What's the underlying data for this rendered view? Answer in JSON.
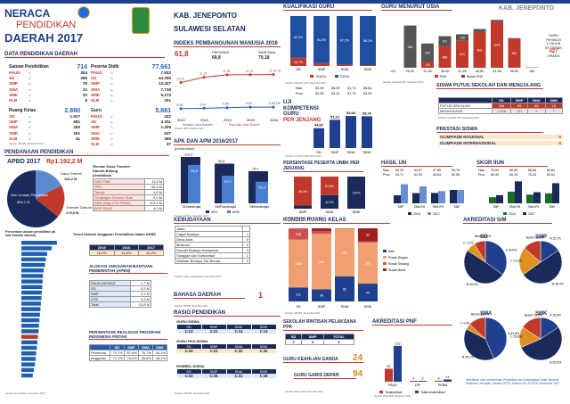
{
  "header": {
    "title1": "NERACA",
    "title2": "PENDIDIKAN",
    "title3": "DAERAH 2017",
    "region": "KAB. JENEPONTO",
    "province": "SULAWESI SELATAN"
  },
  "data_pendidikan": {
    "title": "DATA PENDIDIKAN DAERAH",
    "satuan": {
      "label": "Satuan Pendidikan",
      "total": "714",
      "items": [
        [
          "PAUD",
          "304"
        ],
        [
          "SD",
          "286"
        ],
        [
          "SMP",
          "75"
        ],
        [
          "SMA",
          "23"
        ],
        [
          "SMK",
          "20"
        ],
        [
          "SLB",
          "6"
        ]
      ]
    },
    "peserta": {
      "label": "Peserta Didik",
      "total": "77.661",
      "items": [
        [
          "PAUD",
          "7.832"
        ],
        [
          "SD",
          "43.250"
        ],
        [
          "SMP",
          "13.427"
        ],
        [
          "SMA",
          "7.718"
        ],
        [
          "SMK",
          "5.273"
        ],
        [
          "SLB",
          "161"
        ]
      ]
    },
    "ruang": {
      "label": "Ruang Kelas",
      "total": "2.880",
      "items": [
        [
          "SD",
          "1.627"
        ],
        [
          "SMP",
          "581"
        ],
        [
          "SMA",
          "250"
        ],
        [
          "SMK",
          "181"
        ],
        [
          "SLB",
          "41"
        ]
      ]
    },
    "guru": {
      "label": "Guru",
      "total": "5.881",
      "items": [
        [
          "PAUD",
          "422"
        ],
        [
          "SD",
          "3.311"
        ],
        [
          "SMP",
          "1.205"
        ],
        [
          "SMA",
          "537"
        ],
        [
          "SMK",
          "369"
        ],
        [
          "SLB",
          "37"
        ]
      ]
    },
    "source": "Sumber: PDSPK, November 2017"
  },
  "ipm": {
    "title": "INDEKS PEMBANGUNAN MANUSIA 2016",
    "kab_value": "61,8",
    "prov_label": "PROVINSI",
    "prov_value": "69,8",
    "nas_label": "NASIONAL",
    "nas_value": "70,18",
    "source": "Sumber: BPS, Oktober 2017",
    "legend1": "Harapan Lama Sekolah",
    "legend2": "Rata-rata Lama Sekolah"
  },
  "kualifikasi": {
    "title": "KUALIFIKASI GURU",
    "legend": [
      "<S1/D4",
      "S1/D4"
    ],
    "source": "Sumber: Dapodik GTK, November 2017"
  },
  "guru_usia": {
    "title": "GURU MENURUT USIA",
    "region": "KAB. JENEPONTO",
    "note": [
      "GURU",
      "PENSIUN",
      "1 TAHUN",
      "KE DEPAN"
    ],
    "pensiun": "427",
    "pensiun_unit": "ORANG",
    "legend": [
      "PNS",
      "Bukan PNS"
    ],
    "source": "Sumber: Dapodik GTK, November 2017"
  },
  "uji_kompetensi": {
    "title": [
      "UJI",
      "KOMPETENSI",
      "GURU",
      "PER JENJANG"
    ],
    "source": "Sumber: Dit. GTK, November 2017"
  },
  "apk": {
    "title": "APK DAN APM 2016/2017",
    "subtitle": "(persentase)",
    "legend": [
      "APK",
      "APM"
    ],
    "source": "Sumber: Dit PK, November 2017"
  },
  "unbk": {
    "title": "PERSENTASE PESERTA UNBK PER JENJANG",
    "source": "Sumber: Puspendik, November 2017"
  },
  "hasil_un": {
    "title": "HASIL UN",
    "legend": [
      "2016",
      "2017"
    ],
    "source": "Sumber: Puspendik, November 2017"
  },
  "skor_iun": {
    "title": "SKOR IIUN",
    "legend": [
      "2016",
      "2017"
    ],
    "source": "Sumber: Puspendik, November 2017"
  },
  "putus_sekolah": {
    "title": "SISWA PUTUS SEKOLAH DAN MENGULANG",
    "headers": [
      "",
      "SD",
      "SMP",
      "SMA",
      "SMK"
    ],
    "rows": [
      [
        "PUTUS SEKOLAH",
        "346",
        "59",
        "68",
        "18"
      ],
      [
        "MENGULANG",
        "1.058",
        "101",
        "9",
        "7"
      ]
    ],
    "source": "Sumber: Dapodik GTK, November 2017"
  },
  "prestasi": {
    "title": "PRESTASI SISWA",
    "rows": [
      [
        "OLIMPIADE NASIONAL",
        "0"
      ],
      [
        "OLIMPIADE INTERNASIONAL",
        "0"
      ]
    ]
  },
  "pendanaan": {
    "title": "PENDANAAN PENDIDIKAN",
    "apbd_label": "APBD 2017",
    "apbd_value": "Rp1.192,2 M",
    "dana_daerah_label": "Dana Daerah",
    "dana_daerah_value": "126,2 M",
    "non_urusan_label": "Non Urusan Pendidikan",
    "non_urusan_value": "890,1 M",
    "transfer_label": "Transfer Daerah",
    "transfer_value": "175,8 M",
    "rincian_title": "Rincian Dana Transfer Daerah Bidang pendidikan",
    "rincian": [
      [
        "DAK Fisik",
        "11,5 M"
      ],
      [
        "TPG",
        "45,5 M"
      ],
      [
        "Tamsil",
        "1,6 M"
      ],
      [
        "Tunjangan Khusus Guru",
        "0,0 M"
      ],
      [
        "DAU (Gaji GTK PNSD)",
        "113,5 M"
      ],
      [
        "BOP PAUD",
        "4,2 M"
      ]
    ],
    "ranking_title": "Persentase urusan pendidikan (di luar transfer daerah)",
    "trend_title": "Trend Alokasi Anggaran Pendidikan dalam APBD",
    "trend_years": [
      "2015",
      "2016",
      "2017"
    ],
    "trend_values": [
      "16,0%",
      "14,3%",
      "12,4%"
    ],
    "bantuan_title": "ALOKASI ANGGARAN BANTUAN PEMERINTAH (APBN)",
    "bantuan": [
      [
        "PAUD-DIKMAS",
        "1,7 M"
      ],
      [
        "SD",
        "5,5 M"
      ],
      [
        "SMP",
        "3,1 M"
      ],
      [
        "GTK",
        "3,6 M"
      ],
      [
        "Total",
        "13,8 M"
      ]
    ],
    "pip_title": "PERSENTASE REALISASI PROGRAM INDONESIA PINTAR",
    "pip_headers": [
      "",
      "SD",
      "SMP",
      "SMA",
      "SMK"
    ],
    "pip_rows": [
      [
        "Penerima",
        "73,7%",
        "67,6%",
        "76,7%",
        "40,1%"
      ],
      [
        "Anggaran",
        "72,1%",
        "76,0%",
        "83,6%",
        "48,1%"
      ]
    ],
    "source": "Sumber: Kemendagri, November 2017"
  },
  "kebudayaan": {
    "title": "KEBUDAYAAN",
    "rows": [
      [
        "Jalan",
        ""
      ],
      [
        "Cagar Budaya",
        "1"
      ],
      [
        "Desa Adat",
        "0"
      ],
      [
        "Museum",
        "0"
      ],
      [
        "Rumah Budaya Nusantara",
        "0"
      ],
      [
        "Sanggar dan Komunitas",
        "1"
      ],
      [
        "Warisan Budaya Tak Benda",
        "0"
      ]
    ],
    "source": "Sumber: Ditjen Kebudayaan, November 2017"
  },
  "bahasa": {
    "title": "BAHASA DAERAH",
    "value": "1",
    "source": "Sumber: BPPB, November 2017"
  },
  "rasio": {
    "title": "RASIO PENDIDIKAN",
    "guru_siswa_title": "GURU:SISWA",
    "headers": [
      "SD",
      "SMP",
      "SMA",
      "SMK"
    ],
    "guru_siswa": [
      "1:13",
      "1:11",
      "1:14",
      "1:14"
    ],
    "guru_pns_title": "GURU PNS:SISWA",
    "guru_pns": [
      "1:24",
      "1:22",
      "1:32",
      "1:32"
    ],
    "rombel_title": "ROMBEL:SISWA",
    "rombel": [
      "1:23",
      "1:25",
      "1:31",
      "1:28"
    ],
    "source": "Sumber: PDSPK, November 2017"
  },
  "kondisi": {
    "title": "KONDISI RUANG KELAS",
    "legend": [
      "Baik",
      "Rusak Ringan",
      "Rusak Sedang",
      "Rusak Berat"
    ],
    "source": "Sumber: PDSPK, November 2017"
  },
  "rintisan": {
    "title": "SEKOLAH RINTISAN PELAKSANA PPK",
    "headers": [
      "SD",
      "SMP",
      "TOTAL"
    ],
    "values": [
      "2",
      "3",
      "5"
    ],
    "source": "Sumber: Ditjen GTK, November 2017"
  },
  "keahlian": {
    "title": "GURU KEAHLIAN GANDA",
    "value": "24"
  },
  "garis_depan": {
    "title": "GURU GARIS DEPAN",
    "value": "94",
    "source": "Sumber: Ditjen GTK, November 2017"
  },
  "akreditasi_pnf": {
    "title": "AKREDITASI PNF",
    "legend": [
      "Terakreditasi",
      "Tidak terakreditasi"
    ],
    "source": "Sumber: BAN-PNF, November 2017"
  },
  "akreditasi_sm": {
    "title": "AKREDITASI S/M",
    "source": "Sumber: BAN S/M, November 2017"
  },
  "footer": {
    "note": "Diterbitkan oleh Kementerian Pendidikan dan Kebudayaan Jalan Jenderal Sudirman, Senayan, Jakarta 10270, Telepon 021 5711144 Desember 2017"
  },
  "chart_data": [
    {
      "type": "line",
      "title": "INDEKS PEMBANGUNAN MANUSIA 2016",
      "x": [
        "2012",
        "2013",
        "2014",
        "2015",
        "2016"
      ],
      "series": [
        {
          "name": "Harapan Lama Sekolah",
          "values": [
            10.24,
            11.22,
            11.68,
            11.7,
            11.72
          ]
        },
        {
          "name": "Rata-rata Lama Sekolah",
          "values": [
            5.36,
            5.43,
            5.55,
            5.64,
            5.65
          ]
        }
      ],
      "labels": [
        [
          "10,24",
          "11,22",
          "11,68",
          "11,70",
          "11,72 Tahun"
        ],
        [
          "5,36",
          "5,43",
          "5,55",
          "5,64",
          "5,65 Tahun"
        ]
      ]
    },
    {
      "type": "bar",
      "title": "KUALIFIKASI GURU",
      "categories": [
        "SD",
        "SMP",
        "SMA",
        "SMK"
      ],
      "series": [
        {
          "name": "<S1/D4",
          "values": [
            16.7,
            5.8,
            2.8,
            1.8
          ]
        },
        {
          "name": "S1/D4",
          "values": [
            83.3,
            94.2,
            97.2,
            98.2
          ]
        }
      ]
    },
    {
      "type": "bar",
      "title": "GURU MENURUT USIA",
      "categories": [
        "<24",
        "25-30",
        "31-35",
        "36-40",
        "41-45",
        "46-50",
        "51-55",
        "56-60",
        ">60"
      ],
      "series": [
        {
          "name": "PNS",
          "values": [
            0,
            2,
            139,
            488,
            613,
            803,
            1042,
            654,
            10
          ]
        },
        {
          "name": "Bukan PNS",
          "values": [
            0,
            946,
            406,
            221,
            138,
            66,
            32,
            12,
            0
          ]
        }
      ]
    },
    {
      "type": "bar",
      "title": "UJI KOMPETENSI GURU",
      "categories": [
        "SD",
        "SMP",
        "SMA",
        "SMK"
      ],
      "values": [
        44.87,
        51.13,
        53.94,
        53.76
      ],
      "extra_rows": {
        "Nas.": [
          "54,33",
          "58,25",
          "61,74",
          "58,81"
        ],
        "Prov.": [
          "50,05",
          "54,41",
          "57,75",
          "54,93"
        ]
      }
    },
    {
      "type": "bar",
      "title": "APK DAN APM 2016/2017",
      "categories": [
        "SD/sederajat",
        "SMP/sederajat",
        "SM/sederajat"
      ],
      "series": [
        {
          "name": "APK",
          "values": [
            113.2,
            96.8,
            78.4
          ]
        },
        {
          "name": "APM",
          "values": [
            93.6,
            67.2,
            52.8
          ]
        }
      ]
    },
    {
      "type": "bar",
      "title": "PERSENTASE PESERTA UNBK PER JENJANG",
      "categories": [
        "SMP",
        "SMA",
        "SMK"
      ],
      "series": [
        {
          "name": "UNBK",
          "values": [
            9.6,
            42.2,
            100
          ]
        },
        {
          "name": "UNKP",
          "values": [
            90.4,
            57.8,
            0
          ]
        }
      ]
    },
    {
      "type": "bar",
      "title": "HASIL UN",
      "categories": [
        "SMP",
        "SMA IPA",
        "SMA IPS",
        "SMK"
      ],
      "series": [
        {
          "name": "2016",
          "values": [
            40.44,
            43.25,
            43.48,
            47.34
          ]
        },
        {
          "name": "2017",
          "values": [
            54.71,
            51.9,
            45.84,
            47.34
          ]
        }
      ],
      "extra_rows": {
        "Nas.": [
          "54,25",
          "52,07",
          "47,85",
          "53,75"
        ],
        "Prov.": [
          "54,71",
          "51,90",
          "45,84",
          "52,06"
        ]
      }
    },
    {
      "type": "bar",
      "title": "SKOR IIUN",
      "categories": [
        "SMP",
        "SMA IPA",
        "SMA IPS",
        "SMK"
      ],
      "series": [
        {
          "name": "2016",
          "values": [
            50.5,
            60.2,
            55.1,
            57.3
          ]
        },
        {
          "name": "2017",
          "values": [
            54.1,
            77.9,
            59.2,
            74.8
          ]
        }
      ],
      "extra_rows": {
        "Nas.": [
          "70,93",
          "66,89",
          "66,65",
          "62,61"
        ],
        "Prov.": [
          "60,45",
          "60,15",
          "70,24",
          "60,61"
        ]
      }
    },
    {
      "type": "bar",
      "title": "KONDISI RUANG KELAS",
      "categories": [
        "SD",
        "SMP",
        "SMA",
        "SMK"
      ],
      "series": [
        {
          "name": "Baik",
          "values": [
            311,
            96,
            86,
            44
          ]
        },
        {
          "name": "Rusak Ringan",
          "values": [
            1064,
            442,
            162,
            102
          ]
        },
        {
          "name": "Rusak Sedang",
          "values": [
            248,
            22,
            1,
            3
          ]
        },
        {
          "name": "Rusak Berat",
          "values": [
            4,
            21,
            1,
            32
          ]
        }
      ]
    },
    {
      "type": "bar",
      "title": "AKREDITASI PNF",
      "categories": [
        "PAUD",
        "LKP",
        "PKBM"
      ],
      "series": [
        {
          "name": "Terakreditasi",
          "values": [
            81,
            4,
            6
          ]
        },
        {
          "name": "Tidak terakreditasi",
          "values": [
            223,
            5,
            14
          ]
        }
      ]
    },
    {
      "type": "pie",
      "title": "SD",
      "categories": [
        "A",
        "B",
        "C",
        "Belum"
      ],
      "values": [
        34.9,
        49.3,
        7.2,
        8.6
      ]
    },
    {
      "type": "pie",
      "title": "SMP",
      "categories": [
        "A",
        "B",
        "C",
        "Belum"
      ],
      "values": [
        15.7,
        49.4,
        21.3,
        13.6
      ]
    },
    {
      "type": "pie",
      "title": "SMA",
      "categories": [
        "A",
        "B",
        "C",
        "Belum"
      ],
      "values": [
        43.5,
        39.1,
        4.3,
        13.1
      ]
    },
    {
      "type": "pie",
      "title": "SMK",
      "categories": [
        "A",
        "B",
        "C",
        "Belum"
      ],
      "values": [
        15.8,
        52.6,
        15.8,
        15.8
      ]
    },
    {
      "type": "bar",
      "title": "Trend Alokasi Anggaran Pendidikan dalam APBD",
      "categories": [
        "2015",
        "2016",
        "2017"
      ],
      "values": [
        16.0,
        14.3,
        12.4
      ]
    }
  ]
}
